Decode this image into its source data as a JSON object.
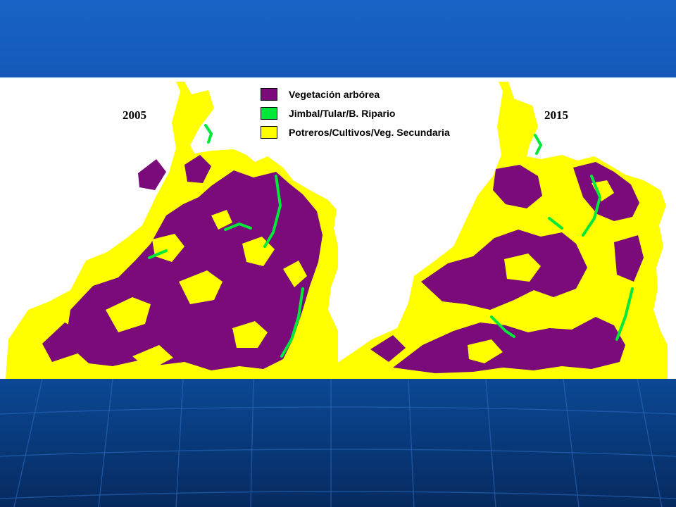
{
  "maps": [
    {
      "year_label": "2005"
    },
    {
      "year_label": "2015"
    }
  ],
  "legend": {
    "items": [
      {
        "label": "Vegetación arbórea",
        "color": "#7b0a7b"
      },
      {
        "label": "Jimbal/Tular/B. Ripario",
        "color": "#00e83a"
      },
      {
        "label": "Potreros/Cultivos/Veg. Secundaria",
        "color": "#ffff00"
      }
    ]
  },
  "colors": {
    "forest": "#7b0a7b",
    "riparian": "#00e83a",
    "pasture": "#ffff00",
    "slide_top": "#1864c6",
    "slide_bottom": "#083a7a"
  }
}
